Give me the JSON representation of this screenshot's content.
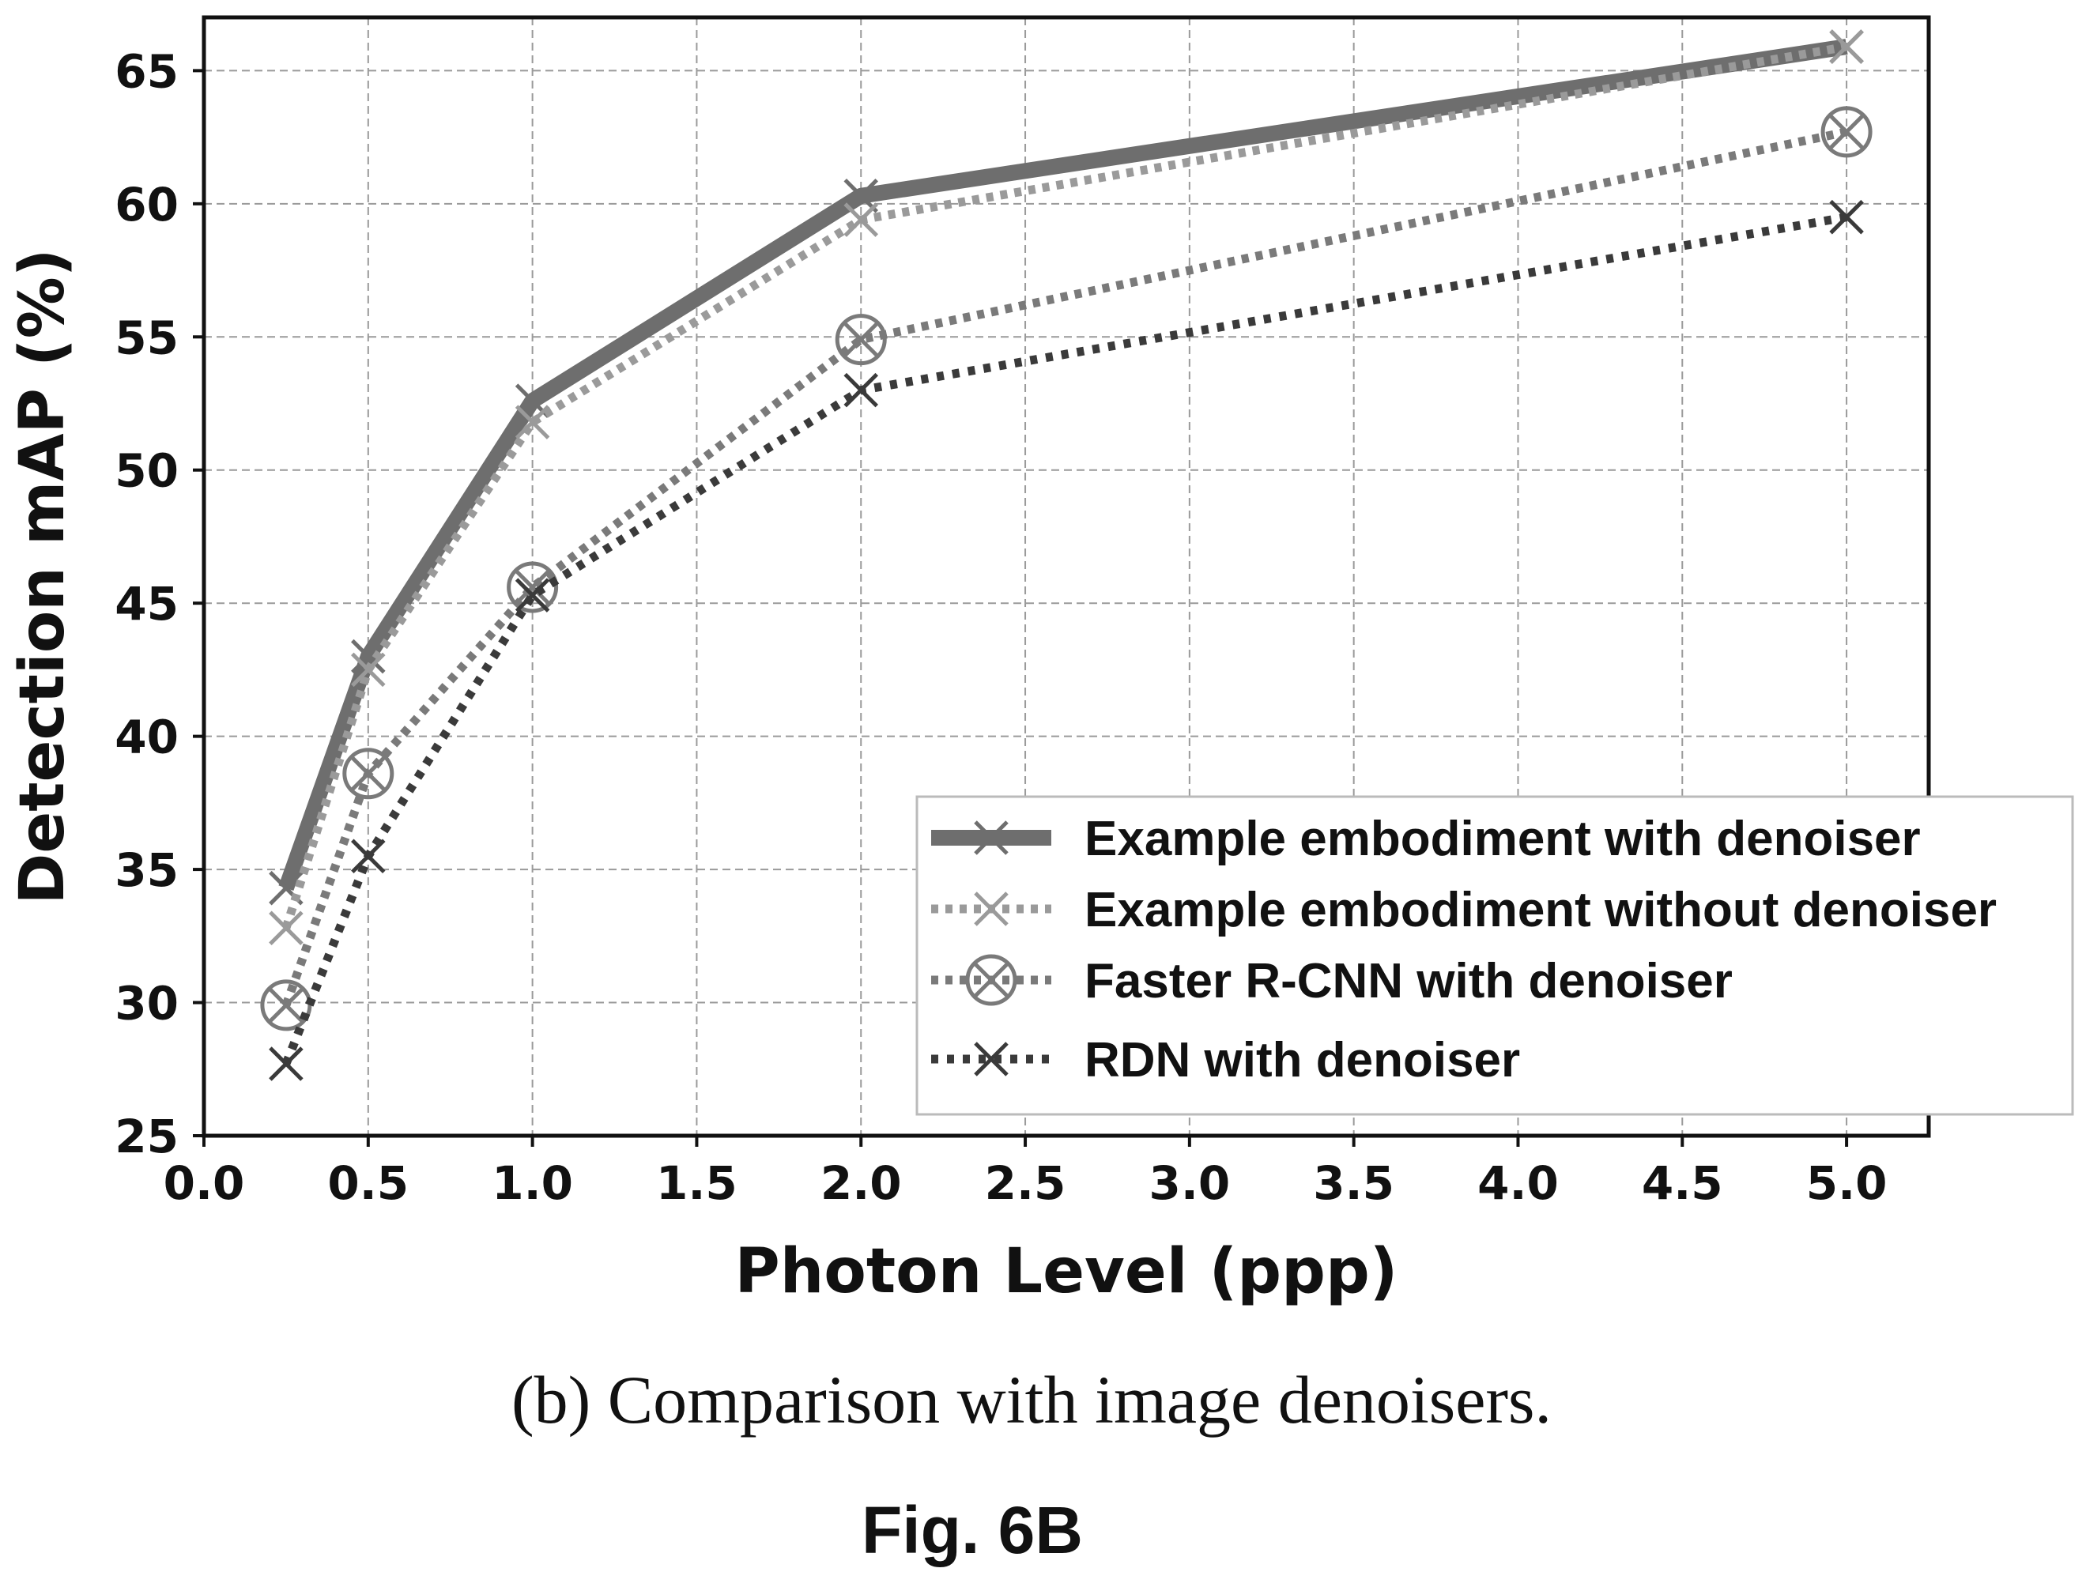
{
  "chart_data": {
    "type": "line",
    "xlabel": "Photon Level (ppp)",
    "ylabel": "Detection mAP (%)",
    "xlim": [
      0.0,
      5.25
    ],
    "ylim": [
      25,
      67
    ],
    "xticks": [
      "0.0",
      "0.5",
      "1.0",
      "1.5",
      "2.0",
      "2.5",
      "3.0",
      "3.5",
      "4.0",
      "4.5",
      "5.0"
    ],
    "yticks": [
      "25",
      "30",
      "35",
      "40",
      "45",
      "50",
      "55",
      "60",
      "65"
    ],
    "grid": true,
    "legend_position": "lower-right",
    "x": [
      0.25,
      0.5,
      1.0,
      2.0,
      5.0
    ],
    "series": [
      {
        "name": "Example embodiment with denoiser",
        "values": [
          34.3,
          43.0,
          52.6,
          60.3,
          65.9
        ],
        "style": "solid",
        "marker": "x",
        "color": "#6e6e6e"
      },
      {
        "name": "Example embodiment without denoiser",
        "values": [
          32.8,
          42.5,
          51.8,
          59.4,
          65.9
        ],
        "style": "dotted",
        "marker": "x",
        "color": "#9a9a9a"
      },
      {
        "name": "Faster R-CNN with denoiser",
        "values": [
          29.9,
          38.6,
          45.6,
          54.9,
          62.7
        ],
        "style": "dotted",
        "marker": "circled-x",
        "color": "#7a7a7a"
      },
      {
        "name": "RDN with denoiser",
        "values": [
          27.7,
          35.5,
          45.3,
          53.0,
          59.5
        ],
        "style": "dotted",
        "marker": "x",
        "color": "#3a3a3a"
      }
    ]
  },
  "caption": "(b) Comparison with image denoisers.",
  "figure_label": "Fig. 6B"
}
